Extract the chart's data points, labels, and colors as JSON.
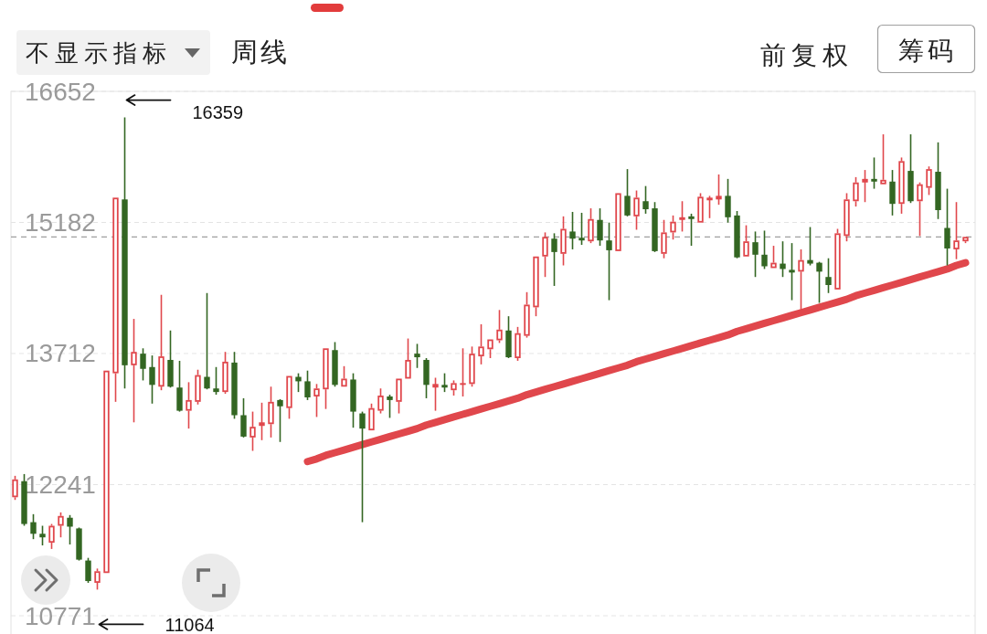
{
  "chart_data": {
    "type": "candlestick",
    "categories": [
      null,
      null,
      null,
      null,
      null,
      null,
      null,
      null,
      null,
      null,
      null,
      null,
      null,
      null,
      null,
      null,
      null,
      null,
      null,
      null,
      null,
      null,
      null,
      null,
      null,
      null,
      null,
      null,
      null,
      null,
      null,
      null,
      null,
      null,
      null,
      null,
      null,
      null,
      null,
      null,
      null,
      null,
      null,
      null,
      null,
      null,
      null,
      null,
      null,
      null,
      null,
      null,
      null,
      null,
      null,
      null,
      null,
      null,
      null,
      null,
      null,
      null,
      null,
      null,
      null,
      null,
      null,
      null,
      null,
      null,
      null,
      null,
      null,
      null,
      null,
      null,
      null,
      null,
      null,
      null,
      null,
      null,
      null,
      null,
      null,
      null,
      null,
      null,
      null,
      null,
      null,
      null,
      null,
      null,
      null,
      null,
      null,
      null,
      null,
      null,
      null,
      null,
      null,
      null,
      null
    ],
    "ohlc": [
      [
        12100,
        12340,
        12070,
        12300
      ],
      [
        12280,
        12360,
        11780,
        11800
      ],
      [
        11820,
        11910,
        11630,
        11690
      ],
      [
        11690,
        11780,
        11560,
        11650
      ],
      [
        11590,
        11800,
        11520,
        11780
      ],
      [
        11780,
        11930,
        11650,
        11890
      ],
      [
        11870,
        11900,
        11570,
        11770
      ],
      [
        11750,
        11760,
        11390,
        11400
      ],
      [
        11390,
        11420,
        11140,
        11160
      ],
      [
        11140,
        11300,
        11064,
        11270
      ],
      [
        11250,
        13520,
        11250,
        13520
      ],
      [
        13490,
        15460,
        13170,
        15460
      ],
      [
        15440,
        16359,
        13320,
        13580
      ],
      [
        13580,
        14100,
        12940,
        13730
      ],
      [
        13710,
        13770,
        13410,
        13540
      ],
      [
        13560,
        13690,
        13150,
        13360
      ],
      [
        13340,
        14370,
        13300,
        13680
      ],
      [
        13640,
        13970,
        13330,
        13340
      ],
      [
        13330,
        13630,
        13060,
        13070
      ],
      [
        13070,
        13390,
        12870,
        13190
      ],
      [
        13170,
        13530,
        13140,
        13470
      ],
      [
        13450,
        14390,
        13310,
        13320
      ],
      [
        13320,
        13560,
        13250,
        13280
      ],
      [
        13280,
        13730,
        13260,
        13620
      ],
      [
        13610,
        13730,
        12980,
        13020
      ],
      [
        13020,
        13210,
        12770,
        12780
      ],
      [
        12770,
        13060,
        12620,
        12890
      ],
      [
        12900,
        13160,
        12740,
        12940
      ],
      [
        12920,
        13340,
        12770,
        13170
      ],
      [
        13190,
        13200,
        12720,
        13120
      ],
      [
        13100,
        13460,
        12980,
        13460
      ],
      [
        13450,
        13490,
        13280,
        13400
      ],
      [
        13400,
        13520,
        13190,
        13220
      ],
      [
        13230,
        13370,
        13000,
        13320
      ],
      [
        13310,
        13770,
        13090,
        13770
      ],
      [
        13750,
        13840,
        13340,
        13360
      ],
      [
        13340,
        13570,
        13340,
        13430
      ],
      [
        13420,
        13490,
        12880,
        13060
      ],
      [
        13040,
        13060,
        11820,
        12870
      ],
      [
        12850,
        13150,
        12850,
        13100
      ],
      [
        13070,
        13320,
        13040,
        13240
      ],
      [
        13230,
        13250,
        12990,
        13190
      ],
      [
        13170,
        13430,
        13040,
        13430
      ],
      [
        13430,
        13880,
        13430,
        13640
      ],
      [
        13710,
        13820,
        13550,
        13670
      ],
      [
        13640,
        13660,
        13210,
        13360
      ],
      [
        13330,
        13440,
        13070,
        13370
      ],
      [
        13360,
        13490,
        13280,
        13330
      ],
      [
        13300,
        13410,
        13240,
        13380
      ],
      [
        13360,
        13770,
        13230,
        13380
      ],
      [
        13370,
        13790,
        13340,
        13710
      ],
      [
        13680,
        14040,
        13590,
        13790
      ],
      [
        13760,
        13870,
        13660,
        13870
      ],
      [
        13860,
        14200,
        13830,
        13980
      ],
      [
        13970,
        14130,
        13660,
        13670
      ],
      [
        13660,
        14010,
        13630,
        13940
      ],
      [
        13910,
        14400,
        13890,
        14260
      ],
      [
        14230,
        14800,
        14130,
        14800
      ],
      [
        14800,
        15070,
        14570,
        15020
      ],
      [
        15000,
        15060,
        14470,
        14850
      ],
      [
        14830,
        15250,
        14700,
        15110
      ],
      [
        15080,
        15300,
        14880,
        15000
      ],
      [
        15010,
        15290,
        14930,
        14980
      ],
      [
        14970,
        15340,
        14950,
        15220
      ],
      [
        15210,
        15340,
        14920,
        14980
      ],
      [
        14980,
        15180,
        14310,
        14870
      ],
      [
        14860,
        15510,
        14860,
        15510
      ],
      [
        15480,
        15780,
        15250,
        15260
      ],
      [
        15250,
        15540,
        15100,
        15460
      ],
      [
        15420,
        15590,
        15280,
        15330
      ],
      [
        15340,
        15410,
        14850,
        14860
      ],
      [
        14830,
        15210,
        14780,
        15070
      ],
      [
        15070,
        15260,
        14990,
        15190
      ],
      [
        15210,
        15420,
        15080,
        15240
      ],
      [
        15250,
        15280,
        14920,
        15220
      ],
      [
        15180,
        15510,
        15180,
        15470
      ],
      [
        15430,
        15480,
        15230,
        15460
      ],
      [
        15440,
        15720,
        15380,
        15480
      ],
      [
        15480,
        15670,
        15180,
        15240
      ],
      [
        15260,
        15310,
        14780,
        14790
      ],
      [
        14800,
        15150,
        14800,
        14970
      ],
      [
        14960,
        15080,
        14570,
        14820
      ],
      [
        14820,
        15090,
        14660,
        14690
      ],
      [
        14670,
        14920,
        14670,
        14730
      ],
      [
        14720,
        14970,
        14570,
        14660
      ],
      [
        14650,
        14950,
        14310,
        14620
      ],
      [
        14630,
        14880,
        14200,
        14760
      ],
      [
        14760,
        15130,
        14700,
        14720
      ],
      [
        14730,
        14740,
        14280,
        14630
      ],
      [
        14570,
        14780,
        14390,
        14480
      ],
      [
        14430,
        15110,
        14430,
        15060
      ],
      [
        15030,
        15510,
        14970,
        15440
      ],
      [
        15420,
        15690,
        15360,
        15630
      ],
      [
        15630,
        15770,
        15410,
        15670
      ],
      [
        15670,
        15910,
        15560,
        15640
      ],
      [
        15610,
        16170,
        15610,
        15660
      ],
      [
        15640,
        15770,
        15260,
        15390
      ],
      [
        15390,
        15910,
        15280,
        15870
      ],
      [
        15760,
        16170,
        15400,
        15420
      ],
      [
        15420,
        15630,
        15030,
        15610
      ],
      [
        15570,
        15810,
        15490,
        15780
      ],
      [
        15750,
        16080,
        15220,
        15320
      ],
      [
        15120,
        15560,
        14700,
        14890
      ],
      [
        14880,
        15410,
        14770,
        14980
      ],
      [
        14970,
        15020,
        14950,
        15020
      ]
    ],
    "colors": [
      "#e0474c",
      "#336622",
      "#336622",
      "#336622",
      "#e0474c",
      "#e0474c",
      "#336622",
      "#336622",
      "#336622",
      "#e0474c",
      "#e0474c",
      "#e0474c",
      "#336622",
      "#e0474c",
      "#336622",
      "#336622",
      "#e0474c",
      "#336622",
      "#336622",
      "#e0474c",
      "#e0474c",
      "#336622",
      "#336622",
      "#e0474c",
      "#336622",
      "#336622",
      "#e0474c",
      "#e0474c",
      "#e0474c",
      "#336622",
      "#e0474c",
      "#336622",
      "#336622",
      "#e0474c",
      "#e0474c",
      "#336622",
      "#e0474c",
      "#336622",
      "#336622",
      "#e0474c",
      "#e0474c",
      "#336622",
      "#e0474c",
      "#e0474c",
      "#336622",
      "#336622",
      "#e0474c",
      "#336622",
      "#e0474c",
      "#e0474c",
      "#e0474c",
      "#e0474c",
      "#e0474c",
      "#e0474c",
      "#336622",
      "#e0474c",
      "#e0474c",
      "#e0474c",
      "#e0474c",
      "#336622",
      "#e0474c",
      "#336622",
      "#336622",
      "#e0474c",
      "#336622",
      "#336622",
      "#e0474c",
      "#336622",
      "#e0474c",
      "#336622",
      "#336622",
      "#e0474c",
      "#e0474c",
      "#e0474c",
      "#336622",
      "#e0474c",
      "#e0474c",
      "#e0474c",
      "#336622",
      "#336622",
      "#e0474c",
      "#336622",
      "#336622",
      "#e0474c",
      "#336622",
      "#336622",
      "#e0474c",
      "#336622",
      "#336622",
      "#336622",
      "#e0474c",
      "#e0474c",
      "#e0474c",
      "#e0474c",
      "#336622",
      "#e0474c",
      "#336622",
      "#e0474c",
      "#336622",
      "#e0474c",
      "#e0474c",
      "#336622",
      "#336622",
      "#e0474c",
      "#e0474c"
    ],
    "series": [
      {
        "type": "line",
        "color": "#e0474c",
        "values": [
          null,
          null,
          null,
          null,
          null,
          null,
          null,
          null,
          null,
          null,
          null,
          null,
          null,
          null,
          null,
          null,
          null,
          null,
          null,
          null,
          null,
          null,
          null,
          null,
          null,
          null,
          null,
          null,
          null,
          null,
          null,
          null,
          12500,
          12530,
          12570,
          12600,
          12630,
          12660,
          12690,
          12720,
          12750,
          12780,
          12810,
          12840,
          12870,
          12910,
          12940,
          12970,
          13000,
          13030,
          13060,
          13090,
          13120,
          13150,
          13180,
          13210,
          13250,
          13280,
          13310,
          13340,
          13370,
          13400,
          13430,
          13460,
          13490,
          13520,
          13550,
          13580,
          13620,
          13650,
          13680,
          13710,
          13740,
          13770,
          13800,
          13830,
          13860,
          13890,
          13920,
          13960,
          13990,
          14020,
          14050,
          14080,
          14110,
          14140,
          14170,
          14200,
          14230,
          14260,
          14290,
          14320,
          14360,
          14390,
          14420,
          14450,
          14480,
          14510,
          14540,
          14570,
          14600,
          14630,
          14660,
          14700,
          14730
        ]
      }
    ],
    "ylim": [
      10771,
      16652
    ],
    "yticks": [
      10771,
      12241,
      13712,
      15182,
      16652
    ],
    "tick_labels": "y",
    "grid": "y",
    "ref_lines": [
      {
        "axis": "y",
        "value": 15020,
        "color": "#9e9e9e",
        "line_style": "dashed"
      }
    ],
    "annotations": [
      "不显示指标",
      "周线",
      "前复权",
      "筹码",
      "16359",
      "11064"
    ]
  }
}
